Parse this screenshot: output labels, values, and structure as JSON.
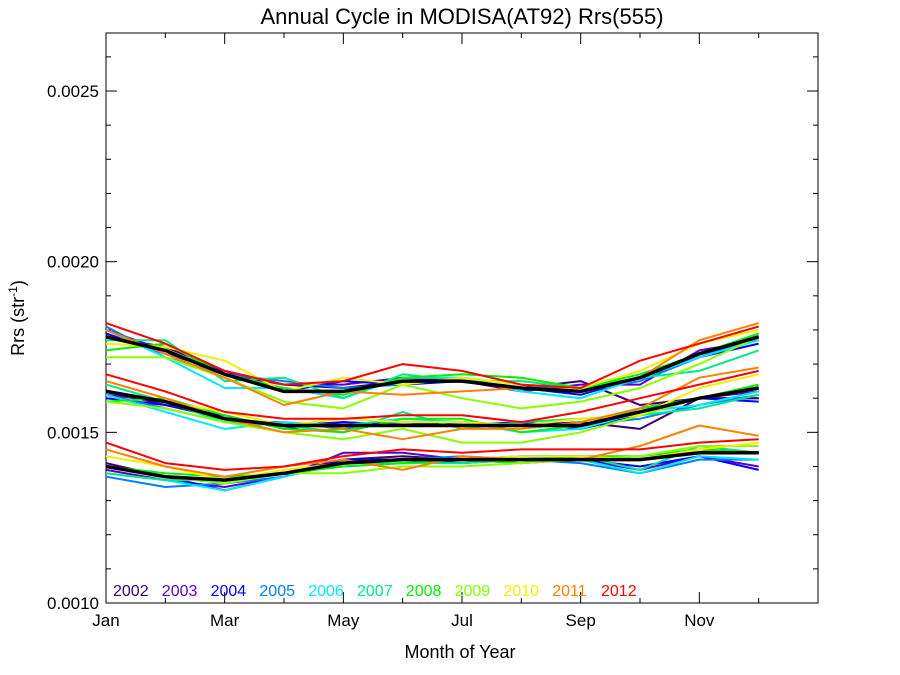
{
  "chart_data": {
    "type": "line",
    "title": "Annual Cycle in MODISA(AT92) Rrs(555)",
    "xlabel": "Month of Year",
    "ylabel": {
      "base": "Rrs (str",
      "sup": "-1",
      "close": ")"
    },
    "xlim": [
      1,
      13
    ],
    "ylim": [
      0.001,
      0.00267
    ],
    "x_ticks": [
      {
        "x": 1,
        "label": "Jan"
      },
      {
        "x": 3,
        "label": "Mar"
      },
      {
        "x": 5,
        "label": "May"
      },
      {
        "x": 7,
        "label": "Jul"
      },
      {
        "x": 9,
        "label": "Sep"
      },
      {
        "x": 11,
        "label": "Nov"
      }
    ],
    "y_ticks": [
      {
        "y": 0.001,
        "label": "0.0010"
      },
      {
        "y": 0.0015,
        "label": "0.0015"
      },
      {
        "y": 0.002,
        "label": "0.0020"
      },
      {
        "y": 0.0025,
        "label": "0.0025"
      }
    ],
    "y_minor_step": 0.0001,
    "x": [
      1,
      2,
      3,
      4,
      5,
      6,
      7,
      8,
      9,
      10,
      11,
      12
    ],
    "series": [
      {
        "name": "2002",
        "color": "#3c0070",
        "groups": [
          [
            0.00178,
            0.00175,
            0.00168,
            0.00164,
            0.00163,
            0.00165,
            0.00165,
            0.00163,
            0.00165,
            0.00158,
            0.0016,
            0.0016
          ],
          [
            0.00162,
            0.00158,
            0.00154,
            0.00152,
            0.00152,
            0.00153,
            0.00152,
            0.00152,
            0.00153,
            0.00151,
            0.0016,
            0.0016
          ],
          [
            0.00141,
            0.00137,
            0.00136,
            0.00138,
            0.00142,
            0.00143,
            0.00142,
            0.00143,
            0.00143,
            0.00142,
            0.00145,
            0.00144
          ]
        ]
      },
      {
        "name": "2003",
        "color": "#5a00c8",
        "groups": [
          [
            0.0018,
            0.00174,
            0.00167,
            0.00164,
            0.00164,
            0.00166,
            0.00165,
            0.00162,
            0.00164,
            0.00164,
            0.00174,
            0.00177
          ],
          [
            0.00161,
            0.00159,
            0.00153,
            0.00152,
            0.00153,
            0.00152,
            0.00153,
            0.00152,
            0.00152,
            0.00157,
            0.0016,
            0.00162
          ],
          [
            0.00139,
            0.00136,
            0.00134,
            0.00137,
            0.00144,
            0.00144,
            0.00142,
            0.00141,
            0.00142,
            0.00139,
            0.00143,
            0.0014
          ]
        ]
      },
      {
        "name": "2004",
        "color": "#0000ff",
        "groups": [
          [
            0.00179,
            0.00173,
            0.00168,
            0.00162,
            0.00165,
            0.00164,
            0.00165,
            0.00163,
            0.00161,
            0.00166,
            0.00172,
            0.00176
          ],
          [
            0.0016,
            0.00158,
            0.00155,
            0.00151,
            0.00153,
            0.00152,
            0.00152,
            0.00153,
            0.00151,
            0.00155,
            0.0016,
            0.00159
          ],
          [
            0.0014,
            0.00137,
            0.00133,
            0.00137,
            0.00142,
            0.00142,
            0.00141,
            0.00142,
            0.00142,
            0.0014,
            0.00143,
            0.00139
          ]
        ]
      },
      {
        "name": "2005",
        "color": "#0080ff",
        "groups": [
          [
            0.00181,
            0.00172,
            0.00167,
            0.00165,
            0.00163,
            0.00164,
            0.00166,
            0.00164,
            0.00162,
            0.00165,
            0.00172,
            0.00178
          ],
          [
            0.00161,
            0.00157,
            0.00153,
            0.00153,
            0.00151,
            0.00153,
            0.00153,
            0.00152,
            0.00152,
            0.00154,
            0.00158,
            0.00161
          ],
          [
            0.00137,
            0.00134,
            0.00135,
            0.00137,
            0.00141,
            0.00142,
            0.00143,
            0.00142,
            0.00141,
            0.00138,
            0.00142,
            0.00142
          ]
        ]
      },
      {
        "name": "2006",
        "color": "#00e8ff",
        "groups": [
          [
            0.0018,
            0.00172,
            0.00163,
            0.00163,
            0.0016,
            0.00166,
            0.00166,
            0.00162,
            0.0016,
            0.00166,
            0.00172,
            0.00177
          ],
          [
            0.00161,
            0.00156,
            0.00151,
            0.00153,
            0.00152,
            0.00154,
            0.00153,
            0.0015,
            0.00151,
            0.00156,
            0.00158,
            0.00162
          ],
          [
            0.00138,
            0.00136,
            0.00133,
            0.00137,
            0.00141,
            0.00141,
            0.00142,
            0.00143,
            0.00142,
            0.00138,
            0.00143,
            0.00142
          ]
        ]
      },
      {
        "name": "2007",
        "color": "#00e888",
        "groups": [
          [
            0.00177,
            0.00177,
            0.00165,
            0.00166,
            0.0016,
            0.00167,
            0.00165,
            0.00165,
            0.00163,
            0.00166,
            0.00168,
            0.00174
          ],
          [
            0.00164,
            0.00159,
            0.00153,
            0.00152,
            0.0015,
            0.00156,
            0.00151,
            0.00153,
            0.00154,
            0.00155,
            0.00157,
            0.00161
          ],
          [
            0.00138,
            0.00136,
            0.00136,
            0.00138,
            0.0014,
            0.00141,
            0.00141,
            0.00142,
            0.00143,
            0.00139,
            0.00146,
            0.00144
          ]
        ]
      },
      {
        "name": "2008",
        "color": "#00f000",
        "groups": [
          [
            0.00174,
            0.00176,
            0.00167,
            0.00163,
            0.00161,
            0.00166,
            0.00167,
            0.00166,
            0.00163,
            0.00167,
            0.00173,
            0.00179
          ],
          [
            0.00159,
            0.0016,
            0.00155,
            0.00151,
            0.0015,
            0.00154,
            0.00154,
            0.0015,
            0.00152,
            0.00157,
            0.0016,
            0.00164
          ],
          [
            0.0014,
            0.00138,
            0.00137,
            0.00138,
            0.0014,
            0.00141,
            0.00142,
            0.00141,
            0.00143,
            0.00143,
            0.00145,
            0.00144
          ]
        ]
      },
      {
        "name": "2009",
        "color": "#88ff00",
        "groups": [
          [
            0.00172,
            0.00172,
            0.00166,
            0.00159,
            0.00157,
            0.00164,
            0.0016,
            0.00157,
            0.00159,
            0.00163,
            0.0017,
            0.00178
          ],
          [
            0.00159,
            0.00157,
            0.00153,
            0.0015,
            0.00148,
            0.00151,
            0.00147,
            0.00147,
            0.0015,
            0.00155,
            0.0016,
            0.00163
          ],
          [
            0.0014,
            0.00137,
            0.00135,
            0.00138,
            0.00138,
            0.0014,
            0.0014,
            0.00141,
            0.00142,
            0.00143,
            0.00146,
            0.00146
          ]
        ]
      },
      {
        "name": "2010",
        "color": "#f0f000",
        "groups": [
          [
            0.00176,
            0.00175,
            0.00171,
            0.00162,
            0.00166,
            0.00164,
            0.00166,
            0.00164,
            0.00163,
            0.00168,
            0.00176,
            0.0018
          ],
          [
            0.00162,
            0.00159,
            0.00156,
            0.00152,
            0.00154,
            0.00153,
            0.00153,
            0.00152,
            0.00154,
            0.00155,
            0.00163,
            0.00167
          ],
          [
            0.00143,
            0.0014,
            0.00136,
            0.00139,
            0.00141,
            0.00142,
            0.00142,
            0.00143,
            0.00143,
            0.00142,
            0.00145,
            0.00147
          ]
        ]
      },
      {
        "name": "2011",
        "color": "#ff8000",
        "groups": [
          [
            0.0018,
            0.00173,
            0.00166,
            0.00158,
            0.00162,
            0.00161,
            0.00162,
            0.00163,
            0.00162,
            0.00166,
            0.00177,
            0.00182
          ],
          [
            0.00165,
            0.0016,
            0.00154,
            0.0015,
            0.00151,
            0.00148,
            0.00151,
            0.00151,
            0.00153,
            0.00157,
            0.00166,
            0.00169
          ],
          [
            0.00145,
            0.0014,
            0.00137,
            0.0014,
            0.00142,
            0.00139,
            0.00143,
            0.00142,
            0.00142,
            0.00146,
            0.00152,
            0.00149
          ]
        ]
      },
      {
        "name": "2012",
        "color": "#ff0000",
        "groups": [
          [
            0.00182,
            0.00176,
            0.00168,
            0.00164,
            0.00165,
            0.0017,
            0.00168,
            0.00164,
            0.00163,
            0.00171,
            0.00176,
            0.00181
          ],
          [
            0.00167,
            0.00162,
            0.00156,
            0.00154,
            0.00154,
            0.00155,
            0.00155,
            0.00153,
            0.00156,
            0.0016,
            0.00164,
            0.00168
          ],
          [
            0.00147,
            0.00141,
            0.00139,
            0.0014,
            0.00143,
            0.00145,
            0.00144,
            0.00145,
            0.00145,
            0.00145,
            0.00147,
            0.00148
          ]
        ]
      }
    ],
    "mean_series": {
      "color": "#000000",
      "groups": [
        [
          0.00178,
          0.00174,
          0.00167,
          0.00162,
          0.00162,
          0.00165,
          0.00165,
          0.00163,
          0.00162,
          0.00166,
          0.00173,
          0.00178
        ],
        [
          0.00162,
          0.00159,
          0.00154,
          0.00152,
          0.00152,
          0.00152,
          0.00152,
          0.00152,
          0.00152,
          0.00156,
          0.0016,
          0.00163
        ],
        [
          0.0014,
          0.00137,
          0.00136,
          0.00138,
          0.00141,
          0.00142,
          0.00142,
          0.00142,
          0.00142,
          0.00142,
          0.00144,
          0.00144
        ]
      ]
    }
  }
}
